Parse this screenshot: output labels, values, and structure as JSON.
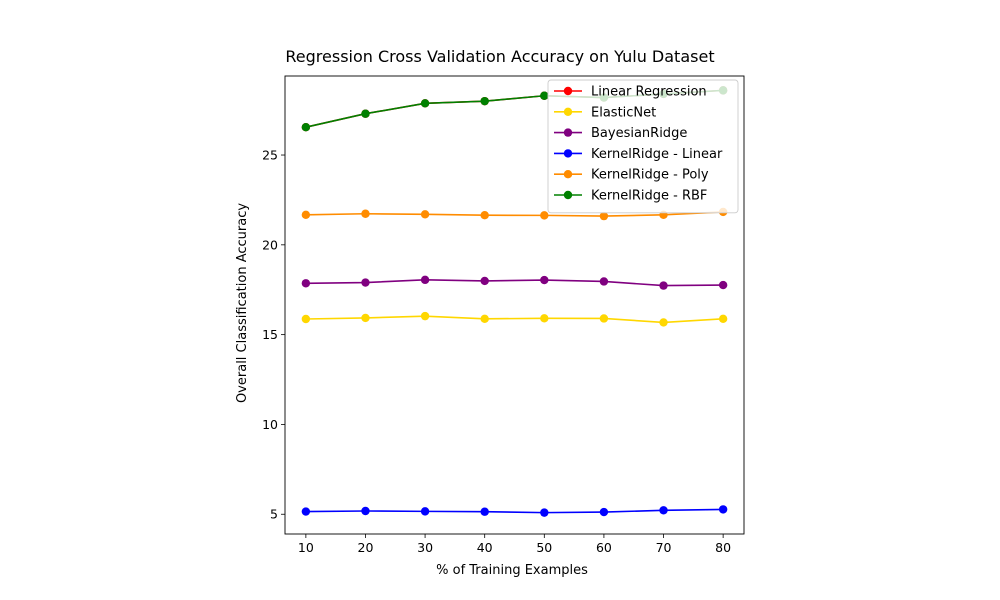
{
  "chart_data": {
    "type": "line",
    "title": "Regression Cross Validation Accuracy on Yulu Dataset",
    "xlabel": "% of Training Examples",
    "ylabel": "Overall Classification Accuracy",
    "x": [
      10,
      20,
      30,
      40,
      50,
      60,
      70,
      80
    ],
    "xlim": [
      6.5,
      83.5
    ],
    "ylim": [
      3.9,
      29.4
    ],
    "xticks": [
      10,
      20,
      30,
      40,
      50,
      60,
      70,
      80
    ],
    "yticks": [
      5,
      10,
      15,
      20,
      25
    ],
    "grid": false,
    "legend_position": "top-right",
    "series": [
      {
        "name": "Linear Regression",
        "color": "#ff0000",
        "values": [
          26.55,
          27.3,
          27.88,
          28.0,
          28.3,
          28.2,
          28.4,
          28.6
        ]
      },
      {
        "name": "ElasticNet",
        "color": "#ffd700",
        "values": [
          15.87,
          15.93,
          16.03,
          15.88,
          15.91,
          15.9,
          15.68,
          15.88
        ]
      },
      {
        "name": "BayesianRidge",
        "color": "#800080",
        "values": [
          17.86,
          17.9,
          18.05,
          17.99,
          18.04,
          17.96,
          17.73,
          17.76
        ]
      },
      {
        "name": "KernelRidge - Linear",
        "color": "#0000ff",
        "values": [
          5.15,
          5.18,
          5.16,
          5.14,
          5.09,
          5.12,
          5.22,
          5.27
        ]
      },
      {
        "name": "KernelRidge - Poly",
        "color": "#ff8c00",
        "values": [
          21.67,
          21.73,
          21.7,
          21.65,
          21.64,
          21.6,
          21.67,
          21.83
        ]
      },
      {
        "name": "KernelRidge - RBF",
        "color": "#008000",
        "values": [
          26.55,
          27.3,
          27.88,
          28.0,
          28.3,
          28.2,
          28.4,
          28.6
        ]
      }
    ]
  }
}
